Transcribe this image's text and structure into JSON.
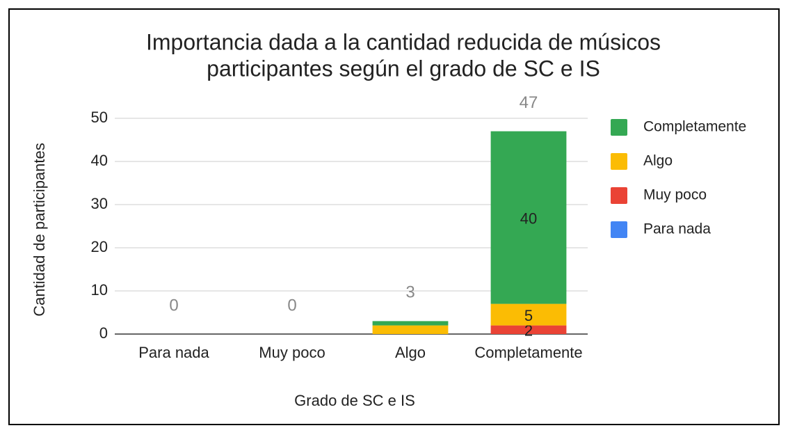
{
  "chart_data": {
    "type": "stacked_bar",
    "title": [
      "Importancia dada a la cantidad reducida de músicos",
      "participantes según el grado de SC e IS"
    ],
    "x_label": "Grado de SC e IS",
    "y_label": "Cantidad de participantes",
    "categories": [
      "Para nada",
      "Muy poco",
      "Algo",
      "Completamente"
    ],
    "series": [
      {
        "name": "Para nada",
        "color": "#4285f4",
        "values": [
          0,
          0,
          0,
          0
        ],
        "value_labels": [
          null,
          null,
          null,
          null
        ]
      },
      {
        "name": "Muy poco",
        "color": "#ea4335",
        "values": [
          0,
          0,
          0,
          2
        ],
        "value_labels": [
          null,
          null,
          null,
          2
        ]
      },
      {
        "name": "Algo",
        "color": "#fbbc04",
        "values": [
          0,
          0,
          2,
          5
        ],
        "value_labels": [
          null,
          null,
          null,
          5
        ]
      },
      {
        "name": "Completamente",
        "color": "#34a853",
        "values": [
          0,
          0,
          1,
          40
        ],
        "value_labels": [
          null,
          null,
          null,
          40
        ]
      }
    ],
    "totals": [
      0,
      0,
      3,
      47
    ],
    "ylim": [
      0,
      50
    ],
    "yticks": [
      0,
      10,
      20,
      30,
      40,
      50
    ],
    "grid": true,
    "legend": "right"
  }
}
